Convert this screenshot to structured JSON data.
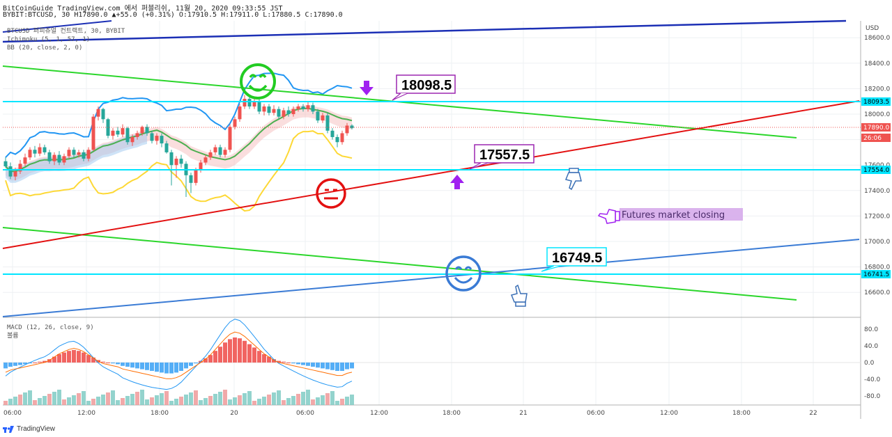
{
  "header": {
    "line1": "BitCoinGuide TradingView.com 에서 퍼블리쉬, 11월 20, 2020 09:33:55 JST",
    "line2": "BYBIT:BTCUSD, 30 H17890.0 ▲+55.0 (+0.31%) O:17910.5 H:17911.0 L:17880.5 C:17890.0"
  },
  "legend": {
    "symbol": "BTCUSD 퍼피츄얼 컨트랙트, 30, BYBIT",
    "ichimoku": "Ichimoku (5, 1, 57, 1)",
    "bb": "BB (20, close, 2, 0)",
    "macd": "MACD (12, 26, close, 9)",
    "macd_sub": "볼륨"
  },
  "price_axis": {
    "currency": "USD",
    "ticks": [
      "18600.0",
      "18400.0",
      "18200.0",
      "18000.0",
      "17800.0",
      "17600.0",
      "17400.0",
      "17200.0",
      "17000.0",
      "16800.0",
      "16600.0"
    ],
    "tags": [
      {
        "label": "18093.5",
        "color": "#00e5ff",
        "text_color": "#000000"
      },
      {
        "label": "17890.0",
        "color": "#ef5350",
        "text_color": "#ffffff"
      },
      {
        "label": "26:06",
        "color": "#ef5350",
        "text_color": "#ffffff"
      },
      {
        "label": "17554.0",
        "color": "#00e5ff",
        "text_color": "#000000"
      },
      {
        "label": "16741.5",
        "color": "#00e5ff",
        "text_color": "#000000"
      }
    ]
  },
  "macd_axis": {
    "ticks": [
      "80.0",
      "40.0",
      "0.0",
      "-40.0",
      "-80.0"
    ]
  },
  "time_axis": {
    "ticks": [
      "06:00",
      "12:00",
      "18:00",
      "20",
      "06:00",
      "12:00",
      "18:00",
      "21",
      "06:00",
      "12:00",
      "18:00",
      "22"
    ]
  },
  "annotations": {
    "callout_high": "18098.5",
    "callout_mid": "17557.5",
    "callout_low": "16749.5",
    "note": "Futures market closing"
  },
  "icons": [
    "smiley-green-icon",
    "neutral-face-red-icon",
    "smiley-blue-icon",
    "arrow-down-icon",
    "arrow-up-icon",
    "pointing-hand-down-icon",
    "pointing-hand-left-icon",
    "pointing-hand-up-icon"
  ],
  "colors": {
    "up": "#ef5350",
    "down": "#26a69a",
    "cyan_level": "#00e5ff",
    "red_trend": "#e31010",
    "green_trend": "#2ad62a",
    "navy_trend": "#1b2fb5",
    "blue_trend": "#3a7bd5",
    "bb_band": "#2196f3",
    "bb_basis": "#4caf50",
    "ichimoku": "#fdd835",
    "purple": "#9c27b0"
  },
  "footer": {
    "brand": "TradingView"
  },
  "chart_data": {
    "type": "candlestick",
    "symbol": "BYBIT:BTCUSD",
    "interval": "30",
    "last_price": 17890.0,
    "price_range": [
      16500,
      18700
    ],
    "horizontal_levels": [
      18093.5,
      17554.0,
      16741.5
    ],
    "candles": [
      [
        17630,
        17590,
        17660,
        17580
      ],
      [
        17590,
        17510,
        17620,
        17490
      ],
      [
        17510,
        17550,
        17580,
        17480
      ],
      [
        17550,
        17610,
        17640,
        17530
      ],
      [
        17610,
        17660,
        17690,
        17590
      ],
      [
        17660,
        17720,
        17740,
        17640
      ],
      [
        17720,
        17690,
        17750,
        17660
      ],
      [
        17690,
        17740,
        17770,
        17670
      ],
      [
        17740,
        17700,
        17760,
        17680
      ],
      [
        17700,
        17630,
        17720,
        17610
      ],
      [
        17630,
        17680,
        17700,
        17600
      ],
      [
        17680,
        17620,
        17710,
        17600
      ],
      [
        17620,
        17670,
        17690,
        17600
      ],
      [
        17670,
        17720,
        17740,
        17650
      ],
      [
        17720,
        17680,
        17740,
        17660
      ],
      [
        17680,
        17700,
        17720,
        17660
      ],
      [
        17700,
        17650,
        17720,
        17630
      ],
      [
        17650,
        17720,
        17740,
        17630
      ],
      [
        17720,
        17980,
        18000,
        17710
      ],
      [
        17980,
        18040,
        18060,
        17950
      ],
      [
        18040,
        17960,
        18050,
        17930
      ],
      [
        17960,
        17830,
        17970,
        17810
      ],
      [
        17830,
        17870,
        17890,
        17800
      ],
      [
        17870,
        17840,
        17900,
        17820
      ],
      [
        17840,
        17890,
        17920,
        17820
      ],
      [
        17890,
        17780,
        17900,
        17760
      ],
      [
        17780,
        17820,
        17840,
        17750
      ],
      [
        17820,
        17850,
        17870,
        17800
      ],
      [
        17850,
        17900,
        17910,
        17830
      ],
      [
        17900,
        17850,
        17920,
        17830
      ],
      [
        17850,
        17790,
        17870,
        17770
      ],
      [
        17790,
        17830,
        17850,
        17760
      ],
      [
        17830,
        17770,
        17850,
        17740
      ],
      [
        17770,
        17700,
        17790,
        17690
      ],
      [
        17700,
        17600,
        17720,
        17440
      ],
      [
        17600,
        17650,
        17670,
        17500
      ],
      [
        17650,
        17610,
        17680,
        17580
      ],
      [
        17610,
        17520,
        17630,
        17350
      ],
      [
        17520,
        17460,
        17540,
        17380
      ],
      [
        17460,
        17560,
        17580,
        17440
      ],
      [
        17560,
        17620,
        17640,
        17540
      ],
      [
        17620,
        17660,
        17680,
        17600
      ],
      [
        17660,
        17700,
        17720,
        17640
      ],
      [
        17700,
        17740,
        17760,
        17680
      ],
      [
        17740,
        17680,
        17760,
        17660
      ],
      [
        17680,
        17720,
        17740,
        17660
      ],
      [
        17720,
        17900,
        17920,
        17700
      ],
      [
        17900,
        17960,
        17980,
        17880
      ],
      [
        17960,
        18060,
        18080,
        17940
      ],
      [
        18060,
        18120,
        18150,
        18040
      ],
      [
        18120,
        18060,
        18140,
        18040
      ],
      [
        18060,
        18100,
        18130,
        18040
      ],
      [
        18100,
        18020,
        18120,
        18000
      ],
      [
        18020,
        18060,
        18080,
        17990
      ],
      [
        18060,
        18010,
        18080,
        17990
      ],
      [
        18010,
        18040,
        18070,
        17990
      ],
      [
        18040,
        17980,
        18060,
        17960
      ],
      [
        17980,
        18030,
        18050,
        17960
      ],
      [
        18030,
        18000,
        18060,
        17980
      ],
      [
        18000,
        18040,
        18060,
        17980
      ],
      [
        18040,
        18060,
        18080,
        18020
      ],
      [
        18060,
        18040,
        18080,
        18020
      ],
      [
        18040,
        18070,
        18100,
        18020
      ],
      [
        18070,
        18020,
        18090,
        18000
      ],
      [
        18020,
        17950,
        18040,
        17930
      ],
      [
        17950,
        17990,
        18010,
        17930
      ],
      [
        17990,
        17870,
        18010,
        17850
      ],
      [
        17870,
        17820,
        17890,
        17800
      ],
      [
        17820,
        17780,
        17840,
        17740
      ],
      [
        17780,
        17850,
        17870,
        17760
      ],
      [
        17850,
        17910,
        17930,
        17830
      ],
      [
        17910,
        17890,
        17920,
        17880
      ]
    ],
    "macd": {
      "histogram": [
        -14,
        -10,
        -8,
        -6,
        -4,
        -2,
        0,
        2,
        4,
        8,
        14,
        20,
        24,
        28,
        30,
        28,
        24,
        18,
        12,
        6,
        2,
        0,
        -2,
        -4,
        -8,
        -10,
        -12,
        -14,
        -16,
        -18,
        -20,
        -22,
        -24,
        -26,
        -26,
        -24,
        -20,
        -14,
        -8,
        -2,
        4,
        10,
        18,
        28,
        38,
        48,
        56,
        60,
        58,
        52,
        44,
        36,
        28,
        20,
        14,
        8,
        4,
        2,
        0,
        -2,
        -4,
        -6,
        -8,
        -10,
        -12,
        -14,
        -16,
        -18,
        -20,
        -20,
        -16,
        -14
      ],
      "macd_line_range": [
        -80,
        90
      ],
      "signal_line_range": [
        -60,
        80
      ]
    }
  }
}
